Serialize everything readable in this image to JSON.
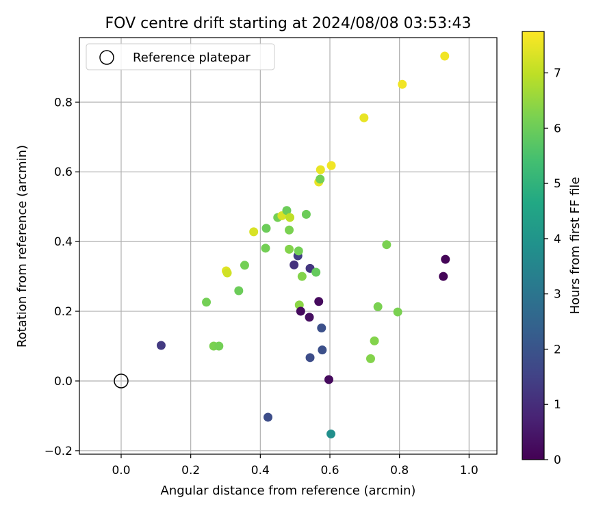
{
  "chart_data": {
    "type": "scatter",
    "title": "FOV centre drift starting at 2024/08/08 03:53:43",
    "xlabel": "Angular distance from reference (arcmin)",
    "ylabel": "Rotation from reference (arcmin)",
    "xlim": [
      -0.12,
      1.08
    ],
    "ylim": [
      -0.21,
      0.985
    ],
    "x_ticks": [
      0.0,
      0.2,
      0.4,
      0.6,
      0.8,
      1.0
    ],
    "x_tick_labels": [
      "0.0",
      "0.2",
      "0.4",
      "0.6",
      "0.8",
      "1.0"
    ],
    "y_ticks": [
      -0.2,
      0.0,
      0.2,
      0.4,
      0.6,
      0.8
    ],
    "y_tick_labels": [
      "−0.2",
      "0.0",
      "0.2",
      "0.4",
      "0.6",
      "0.8"
    ],
    "grid": true,
    "legend": {
      "placement": "top-left",
      "entries": [
        "Reference platepar"
      ]
    },
    "reference_point": {
      "x": 0.0,
      "y": 0.0
    },
    "colorbar": {
      "label": "Hours from first FF file",
      "min": 0,
      "max": 7.75,
      "ticks": [
        0,
        1,
        2,
        3,
        4,
        5,
        6,
        7
      ],
      "tick_labels": [
        "0",
        "1",
        "2",
        "3",
        "4",
        "5",
        "6",
        "7"
      ],
      "colormap": "viridis"
    },
    "points": [
      {
        "x": 0.115,
        "y": 0.102,
        "hours": 1.3
      },
      {
        "x": 0.245,
        "y": 0.226,
        "hours": 6.1
      },
      {
        "x": 0.266,
        "y": 0.1,
        "hours": 6.2
      },
      {
        "x": 0.281,
        "y": 0.1,
        "hours": 6.1
      },
      {
        "x": 0.302,
        "y": 0.316,
        "hours": 7.4
      },
      {
        "x": 0.305,
        "y": 0.31,
        "hours": 7.2
      },
      {
        "x": 0.338,
        "y": 0.259,
        "hours": 6.0
      },
      {
        "x": 0.355,
        "y": 0.332,
        "hours": 6.1
      },
      {
        "x": 0.381,
        "y": 0.428,
        "hours": 7.3
      },
      {
        "x": 0.415,
        "y": 0.381,
        "hours": 6.1
      },
      {
        "x": 0.417,
        "y": 0.438,
        "hours": 6.0
      },
      {
        "x": 0.422,
        "y": -0.104,
        "hours": 1.8
      },
      {
        "x": 0.45,
        "y": 0.469,
        "hours": 6.1
      },
      {
        "x": 0.462,
        "y": 0.474,
        "hours": 7.3
      },
      {
        "x": 0.476,
        "y": 0.489,
        "hours": 6.0
      },
      {
        "x": 0.483,
        "y": 0.433,
        "hours": 6.2
      },
      {
        "x": 0.483,
        "y": 0.378,
        "hours": 6.3
      },
      {
        "x": 0.485,
        "y": 0.469,
        "hours": 7.0
      },
      {
        "x": 0.497,
        "y": 0.333,
        "hours": 1.1
      },
      {
        "x": 0.508,
        "y": 0.359,
        "hours": 1.4
      },
      {
        "x": 0.51,
        "y": 0.373,
        "hours": 6.1
      },
      {
        "x": 0.512,
        "y": 0.218,
        "hours": 6.4
      },
      {
        "x": 0.516,
        "y": 0.2,
        "hours": 0.2
      },
      {
        "x": 0.52,
        "y": 0.3,
        "hours": 6.3
      },
      {
        "x": 0.532,
        "y": 0.478,
        "hours": 6.0
      },
      {
        "x": 0.541,
        "y": 0.183,
        "hours": 0.3
      },
      {
        "x": 0.543,
        "y": 0.067,
        "hours": 1.8
      },
      {
        "x": 0.543,
        "y": 0.323,
        "hours": 1.2
      },
      {
        "x": 0.56,
        "y": 0.312,
        "hours": 5.9
      },
      {
        "x": 0.568,
        "y": 0.228,
        "hours": 0.2
      },
      {
        "x": 0.568,
        "y": 0.571,
        "hours": 7.5
      },
      {
        "x": 0.572,
        "y": 0.579,
        "hours": 6.1
      },
      {
        "x": 0.573,
        "y": 0.606,
        "hours": 7.5
      },
      {
        "x": 0.576,
        "y": 0.152,
        "hours": 1.9
      },
      {
        "x": 0.578,
        "y": 0.089,
        "hours": 1.9
      },
      {
        "x": 0.597,
        "y": 0.004,
        "hours": 0.2
      },
      {
        "x": 0.603,
        "y": -0.152,
        "hours": 3.8
      },
      {
        "x": 0.604,
        "y": 0.618,
        "hours": 7.6
      },
      {
        "x": 0.698,
        "y": 0.755,
        "hours": 7.5
      },
      {
        "x": 0.717,
        "y": 0.064,
        "hours": 6.3
      },
      {
        "x": 0.728,
        "y": 0.115,
        "hours": 6.3
      },
      {
        "x": 0.738,
        "y": 0.213,
        "hours": 6.2
      },
      {
        "x": 0.763,
        "y": 0.391,
        "hours": 6.2
      },
      {
        "x": 0.795,
        "y": 0.198,
        "hours": 6.2
      },
      {
        "x": 0.808,
        "y": 0.851,
        "hours": 7.6
      },
      {
        "x": 0.926,
        "y": 0.3,
        "hours": 0.1
      },
      {
        "x": 0.93,
        "y": 0.932,
        "hours": 7.6
      },
      {
        "x": 0.932,
        "y": 0.349,
        "hours": 0.1
      }
    ]
  }
}
